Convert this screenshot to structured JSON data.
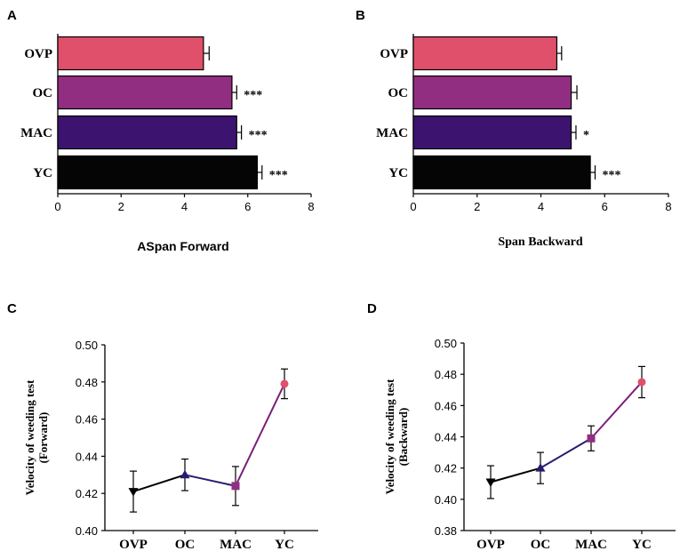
{
  "chart_data": [
    {
      "panel": "A",
      "type": "bar",
      "orientation": "horizontal",
      "title": "",
      "xlabel": "ASpan Forward",
      "ylabel": "",
      "xlim": [
        0,
        8
      ],
      "xticks": [
        0,
        2,
        4,
        6,
        8
      ],
      "categories": [
        "OVP",
        "OC",
        "MAC",
        "YC"
      ],
      "values": [
        4.6,
        5.5,
        5.65,
        6.3
      ],
      "errors": [
        0.18,
        0.15,
        0.15,
        0.15
      ],
      "significance": [
        "",
        "***",
        "***",
        "***"
      ],
      "colors": [
        "#e0506a",
        "#922e82",
        "#3c1470",
        "#050505"
      ]
    },
    {
      "panel": "B",
      "type": "bar",
      "orientation": "horizontal",
      "title": "",
      "xlabel": "Span Backward",
      "ylabel": "",
      "xlim": [
        0,
        8
      ],
      "xticks": [
        0,
        2,
        4,
        6,
        8
      ],
      "categories": [
        "OVP",
        "OC",
        "MAC",
        "YC"
      ],
      "values": [
        4.5,
        4.95,
        4.95,
        5.55
      ],
      "errors": [
        0.15,
        0.18,
        0.15,
        0.15
      ],
      "significance": [
        "",
        "",
        "*",
        "***"
      ],
      "colors": [
        "#e0506a",
        "#922e82",
        "#3c1470",
        "#050505"
      ]
    },
    {
      "panel": "C",
      "type": "line",
      "title": "",
      "xlabel": "",
      "ylabel_lines": [
        "Velocity of weeding test",
        "(Forward)"
      ],
      "ylim": [
        0.4,
        0.5
      ],
      "yticks": [
        "0.40",
        "0.42",
        "0.44",
        "0.46",
        "0.48",
        "0.50"
      ],
      "categories": [
        "OVP",
        "OC",
        "MAC",
        "YC"
      ],
      "values": [
        0.421,
        0.43,
        0.424,
        0.479
      ],
      "errors": [
        0.011,
        0.0085,
        0.0105,
        0.008
      ],
      "markers": [
        "triangle-down",
        "triangle-up",
        "square",
        "circle"
      ],
      "marker_colors": [
        "#000000",
        "#2a1a6e",
        "#922e82",
        "#e0506a"
      ],
      "segment_colors": [
        "#000000",
        "#2a1a6e",
        "#7a1f7a"
      ]
    },
    {
      "panel": "D",
      "type": "line",
      "title": "",
      "xlabel": "",
      "ylabel_lines": [
        "Velocity of weeding test",
        "(Backward)"
      ],
      "ylim": [
        0.38,
        0.5
      ],
      "yticks": [
        "0.38",
        "0.40",
        "0.42",
        "0.44",
        "0.46",
        "0.48",
        "0.50"
      ],
      "categories": [
        "OVP",
        "OC",
        "MAC",
        "YC"
      ],
      "values": [
        0.411,
        0.42,
        0.439,
        0.475
      ],
      "errors": [
        0.0105,
        0.01,
        0.008,
        0.01
      ],
      "markers": [
        "triangle-down",
        "triangle-up",
        "square",
        "circle"
      ],
      "marker_colors": [
        "#000000",
        "#2a1a6e",
        "#922e82",
        "#e0506a"
      ],
      "segment_colors": [
        "#000000",
        "#2a1a6e",
        "#7a1f7a"
      ]
    }
  ]
}
